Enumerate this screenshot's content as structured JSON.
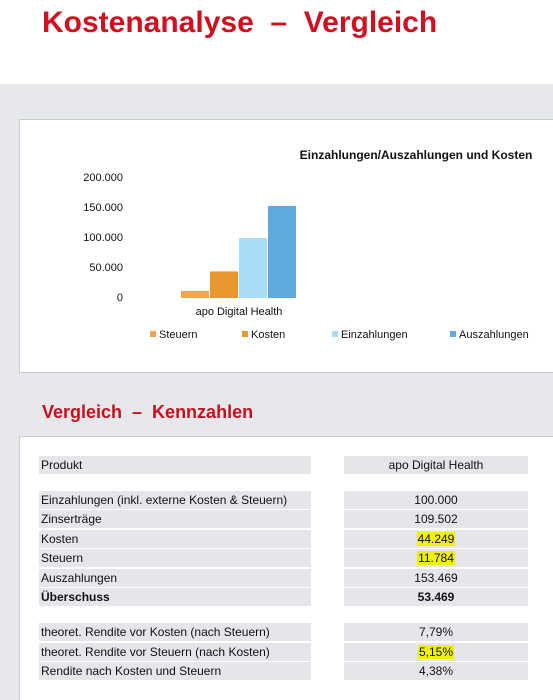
{
  "header": {
    "title": "Kostenanalyse  –  Vergleich"
  },
  "chart_data": {
    "type": "bar",
    "title": "Einzahlungen/Auszahlungen und Kosten",
    "categories": [
      "apo Digital Health"
    ],
    "series": [
      {
        "name": "Steuern",
        "color": "#f2a553",
        "values": [
          11784
        ]
      },
      {
        "name": "Kosten",
        "color": "#e8982f",
        "values": [
          44249
        ]
      },
      {
        "name": "Einzahlungen",
        "color": "#a9dcf7",
        "values": [
          100000
        ]
      },
      {
        "name": "Auszahlungen",
        "color": "#5ea9dd",
        "values": [
          153469
        ]
      }
    ],
    "ylim": [
      0,
      200000
    ],
    "yticks": [
      0,
      {
        "value": 50000,
        "label": "50.000"
      },
      {
        "value": 100000,
        "label": "100.000"
      },
      {
        "value": 150000,
        "label": "150.000"
      },
      {
        "value": 200000,
        "label": "200.000"
      }
    ],
    "grid": false,
    "legend": "bottom"
  },
  "section": {
    "title": "Vergleich  –  Kennzahlen"
  },
  "table": {
    "header": [
      "Produkt",
      "apo Digital Health"
    ],
    "sections": [
      [
        {
          "label": "Einzahlungen (inkl. externe Kosten & Steuern)",
          "value": "100.000"
        },
        {
          "label": "Zinserträge",
          "value": "109.502"
        },
        {
          "label": "Kosten",
          "value": "44.249",
          "highlight": true
        },
        {
          "label": "Steuern",
          "value": "11.784",
          "highlight": true
        },
        {
          "label": "Auszahlungen",
          "value": "153.469"
        },
        {
          "label": "Überschuss",
          "value": "53.469",
          "bold": true
        }
      ],
      [
        {
          "label": "theoret. Rendite vor Kosten (nach Steuern)",
          "value": "7,79%"
        },
        {
          "label": "theoret. Rendite vor Steuern (nach Kosten)",
          "value": "5,15%",
          "highlight": true
        },
        {
          "label": "Rendite nach Kosten und Steuern",
          "value": "4,38%"
        }
      ]
    ]
  }
}
